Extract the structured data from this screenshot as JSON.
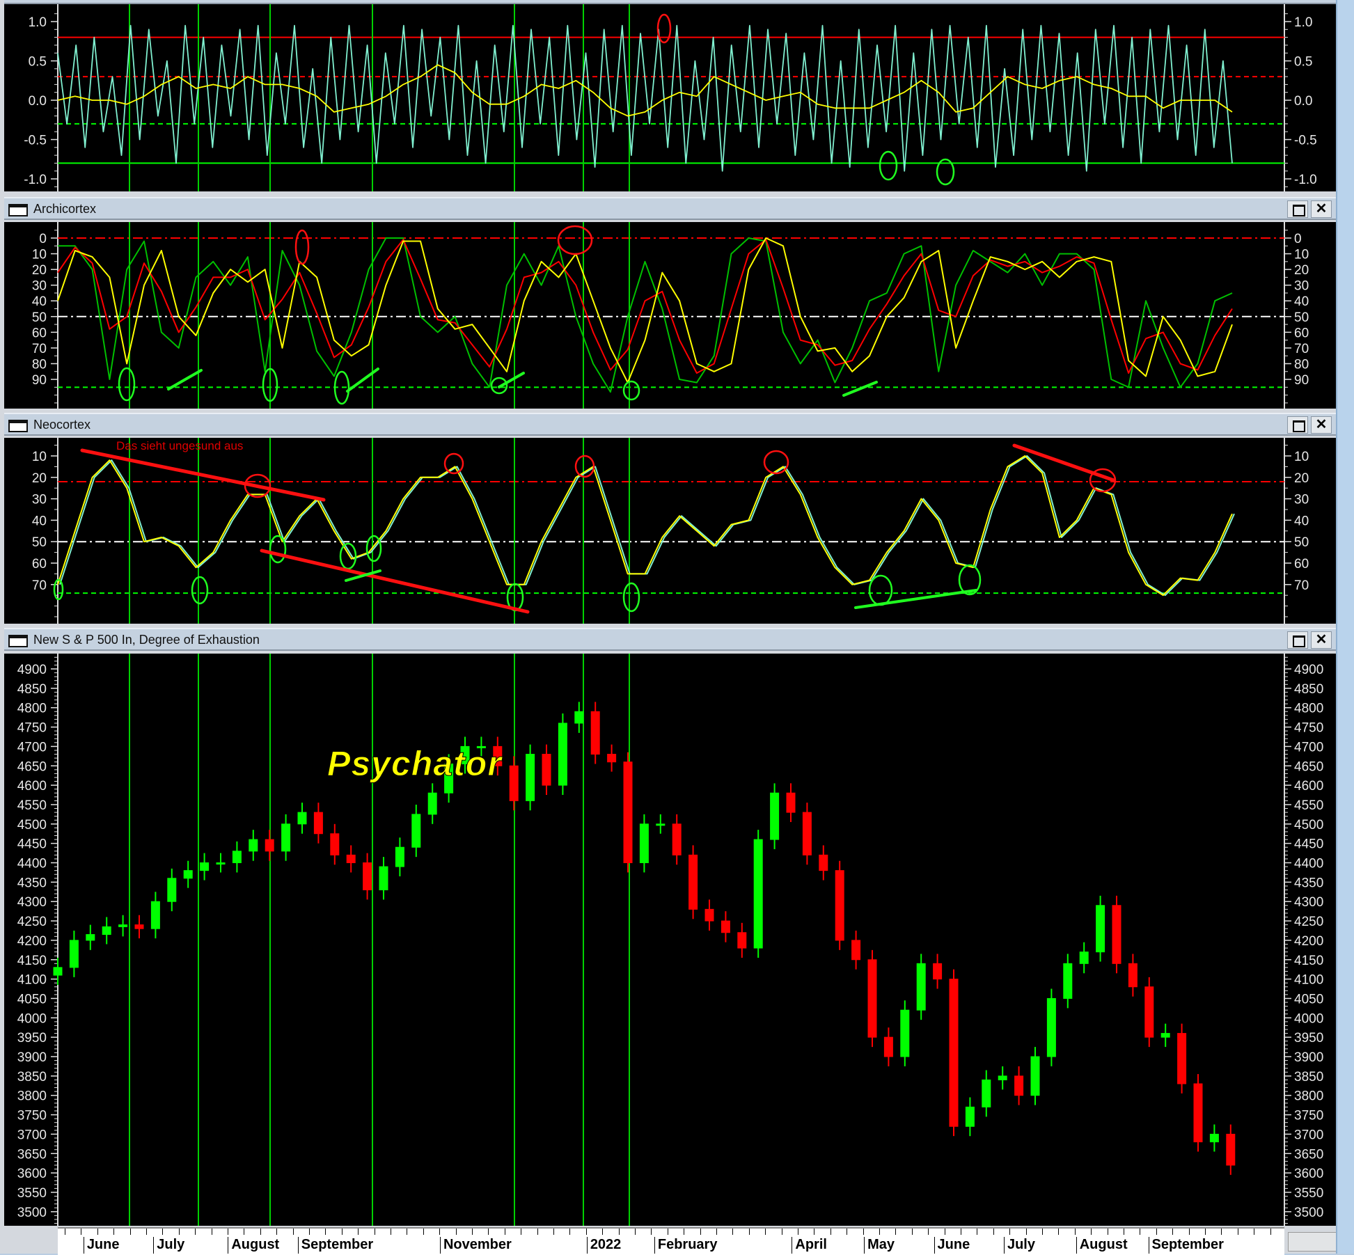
{
  "panes": [
    {
      "title": "",
      "ticks": [
        "1.0",
        "0.5",
        "0.0",
        "-0.5",
        "-1.0"
      ],
      "tick_values": [
        1.0,
        0.5,
        0.0,
        -0.5,
        -1.0
      ],
      "levels": [
        {
          "value": 0.8,
          "color": "#ff0000",
          "style": "solid"
        },
        {
          "value": 0.3,
          "color": "#ff0000",
          "style": "dashed"
        },
        {
          "value": -0.3,
          "color": "#00ff00",
          "style": "dashed"
        },
        {
          "value": -0.8,
          "color": "#00ff00",
          "style": "solid"
        }
      ]
    },
    {
      "title": "Archicortex",
      "ticks": [
        "0",
        "10",
        "20",
        "30",
        "40",
        "50",
        "60",
        "70",
        "80",
        "90"
      ],
      "tick_values": [
        0,
        10,
        20,
        30,
        40,
        50,
        60,
        70,
        80,
        90
      ],
      "levels": [
        {
          "value": 0,
          "color": "#ff0000",
          "style": "dashdot"
        },
        {
          "value": 50,
          "color": "#ffffff",
          "style": "dashdot"
        },
        {
          "value": 95,
          "color": "#00ff00",
          "style": "dashed"
        }
      ]
    },
    {
      "title": "Neocortex",
      "ticks": [
        "10",
        "20",
        "30",
        "40",
        "50",
        "60",
        "70"
      ],
      "tick_values": [
        10,
        20,
        30,
        40,
        50,
        60,
        70
      ],
      "levels": [
        {
          "value": 22,
          "color": "#ff0000",
          "style": "dashdot"
        },
        {
          "value": 50,
          "color": "#ffffff",
          "style": "dashdot"
        },
        {
          "value": 74,
          "color": "#00ff00",
          "style": "dashed"
        }
      ],
      "annotation": "Das sieht ungesund aus"
    },
    {
      "title": "New S & P 500 In, Degree of Exhaustion",
      "ticks": [
        "4900",
        "4850",
        "4800",
        "4750",
        "4700",
        "4650",
        "4600",
        "4550",
        "4500",
        "4450",
        "4400",
        "4350",
        "4300",
        "4250",
        "4200",
        "4150",
        "4100",
        "4050",
        "4000",
        "3950",
        "3900",
        "3850",
        "3800",
        "3750",
        "3700",
        "3650",
        "3600",
        "3550",
        "3500"
      ],
      "tick_values": [
        4900,
        4850,
        4800,
        4750,
        4700,
        4650,
        4600,
        4550,
        4500,
        4450,
        4400,
        4350,
        4300,
        4250,
        4200,
        4150,
        4100,
        4050,
        4000,
        3950,
        3900,
        3850,
        3800,
        3750,
        3700,
        3650,
        3600,
        3550,
        3500
      ],
      "watermark": "Psychator"
    }
  ],
  "x_axis": {
    "labels": [
      {
        "text": "June",
        "date": "2021-06-01"
      },
      {
        "text": "July",
        "date": "2021-07-01"
      },
      {
        "text": "August",
        "date": "2021-08-02"
      },
      {
        "text": "September",
        "date": "2021-09-01"
      },
      {
        "text": "November",
        "date": "2021-11-01"
      },
      {
        "text": "2022",
        "date": "2022-01-03"
      },
      {
        "text": "February",
        "date": "2022-02-01"
      },
      {
        "text": "April",
        "date": "2022-04-01"
      },
      {
        "text": "May",
        "date": "2022-05-02"
      },
      {
        "text": "June",
        "date": "2022-06-01"
      },
      {
        "text": "July",
        "date": "2022-07-01"
      },
      {
        "text": "August",
        "date": "2022-08-01"
      },
      {
        "text": "September",
        "date": "2022-09-01"
      }
    ]
  },
  "colors": {
    "up": "#00ff00",
    "down": "#ff0000",
    "cyan": "#80f0d0",
    "yellow": "#ffff00",
    "marker": "#00d000",
    "background": "#000000"
  },
  "chart_data": [
    {
      "type": "line",
      "pane": "top",
      "x_range": [
        "2021-05-21",
        "2022-10-07"
      ],
      "ylim": [
        -1.1,
        1.1
      ],
      "series": [
        {
          "color": "#80f0d0",
          "values": [
            0.6,
            -0.3,
            0.7,
            -0.6,
            0.8,
            -0.4,
            0.3,
            -0.7,
            0.95,
            -0.5,
            0.9,
            -0.2,
            0.5,
            -0.8,
            0.95,
            -0.3,
            0.8,
            -0.6,
            0.7,
            -0.2,
            0.9,
            -0.5,
            0.95,
            -0.7,
            0.6,
            -0.3,
            0.95,
            -0.6,
            0.4,
            -0.8,
            0.8,
            -0.5,
            0.95,
            -0.4,
            0.7,
            -0.8,
            0.6,
            -0.3,
            0.95,
            -0.6,
            0.9,
            -0.2,
            0.8,
            -0.5,
            0.95,
            -0.7,
            0.5,
            -0.8,
            0.7,
            -0.4,
            0.95,
            -0.6,
            0.9,
            -0.3,
            0.8,
            -0.7,
            0.95,
            -0.5,
            0.6,
            -0.85,
            0.9,
            -0.4,
            0.95,
            -0.7,
            0.85,
            -0.3,
            0.9,
            -0.6,
            0.95,
            -0.8,
            0.5,
            -0.5,
            0.8,
            -0.9,
            0.7,
            -0.4,
            0.95,
            -0.6,
            0.9,
            -0.3,
            0.85,
            -0.7,
            0.6,
            -0.5,
            0.95,
            -0.8,
            0.5,
            -0.85,
            0.9,
            -0.6,
            0.7,
            -0.4,
            0.95,
            -0.9,
            0.6,
            -0.7,
            0.9,
            -0.5,
            0.95,
            -0.3,
            0.8,
            -0.6,
            0.95,
            -0.85,
            0.4,
            -0.7,
            0.9,
            -0.5,
            0.95,
            -0.4,
            0.85,
            -0.7,
            0.6,
            -0.9,
            0.9,
            -0.3,
            0.95,
            -0.6,
            0.8,
            -0.8,
            0.9,
            -0.4,
            0.95,
            -0.5,
            0.7,
            -0.7,
            0.9,
            -0.6,
            0.5,
            -0.8
          ]
        },
        {
          "color": "#ffff00",
          "values": [
            0,
            0.05,
            0,
            0,
            -0.05,
            0.05,
            0.2,
            0.3,
            0.15,
            0.2,
            0.15,
            0.3,
            0.2,
            0.2,
            0.15,
            0.05,
            -0.15,
            -0.1,
            -0.05,
            0.05,
            0.2,
            0.3,
            0.45,
            0.35,
            0.1,
            -0.05,
            -0.05,
            0.05,
            0.2,
            0.15,
            0.25,
            0.1,
            -0.1,
            -0.2,
            -0.15,
            0,
            0.1,
            0.05,
            0.3,
            0.2,
            0.1,
            0,
            0.05,
            0.1,
            -0.05,
            -0.1,
            -0.1,
            -0.1,
            0,
            0.1,
            0.25,
            0.1,
            -0.15,
            -0.1,
            0.1,
            0.3,
            0.2,
            0.15,
            0.25,
            0.3,
            0.2,
            0.15,
            0.05,
            0.05,
            -0.1,
            0,
            0,
            0,
            -0.15
          ]
        }
      ]
    },
    {
      "type": "line",
      "pane": "Archicortex",
      "x_range": [
        "2021-05-21",
        "2022-10-07"
      ],
      "ylim": [
        0,
        100
      ],
      "inverted": true,
      "series": [
        {
          "color": "#00c000",
          "values": [
            5,
            5,
            20,
            90,
            20,
            2,
            60,
            70,
            25,
            15,
            30,
            12,
            85,
            8,
            30,
            72,
            88,
            60,
            20,
            0,
            0,
            50,
            60,
            50,
            80,
            95,
            30,
            10,
            30,
            5,
            50,
            80,
            98,
            50,
            15,
            45,
            90,
            92,
            75,
            10,
            0,
            2,
            60,
            80,
            65,
            92,
            70,
            40,
            35,
            10,
            5,
            85,
            30,
            8,
            15,
            22,
            10,
            30,
            10,
            10,
            20,
            90,
            95,
            40,
            70,
            95,
            80,
            40,
            35
          ]
        },
        {
          "color": "#ff0000",
          "values": [
            22,
            6,
            16,
            58,
            50,
            16,
            34,
            60,
            44,
            25,
            25,
            20,
            52,
            39,
            22,
            48,
            76,
            68,
            44,
            15,
            1,
            26,
            52,
            54,
            68,
            82,
            58,
            25,
            22,
            15,
            30,
            60,
            84,
            71,
            40,
            34,
            65,
            86,
            80,
            45,
            10,
            1,
            32,
            65,
            68,
            81,
            78,
            58,
            42,
            24,
            10,
            46,
            50,
            24,
            14,
            18,
            15,
            22,
            18,
            12,
            16,
            52,
            86,
            64,
            60,
            80,
            84,
            62,
            45
          ]
        },
        {
          "color": "#ffff00",
          "values": [
            40,
            8,
            12,
            25,
            80,
            30,
            8,
            50,
            62,
            35,
            20,
            28,
            20,
            70,
            15,
            25,
            65,
            75,
            68,
            30,
            2,
            2,
            45,
            58,
            55,
            70,
            85,
            40,
            15,
            25,
            10,
            40,
            70,
            92,
            65,
            22,
            40,
            80,
            85,
            80,
            20,
            0,
            5,
            50,
            72,
            70,
            85,
            75,
            50,
            38,
            15,
            8,
            70,
            40,
            12,
            15,
            20,
            15,
            25,
            15,
            12,
            15,
            78,
            88,
            50,
            65,
            88,
            85,
            55
          ]
        }
      ]
    },
    {
      "type": "line",
      "pane": "Neocortex",
      "x_range": [
        "2021-05-21",
        "2022-10-07"
      ],
      "ylim": [
        5,
        80
      ],
      "inverted": true,
      "series": [
        {
          "color": "#ffff00",
          "values": [
            70,
            45,
            20,
            12,
            25,
            50,
            48,
            52,
            62,
            55,
            40,
            28,
            28,
            50,
            38,
            30,
            45,
            58,
            55,
            45,
            30,
            20,
            20,
            15,
            30,
            50,
            70,
            70,
            50,
            35,
            20,
            15,
            40,
            65,
            65,
            48,
            38,
            45,
            52,
            42,
            40,
            20,
            15,
            28,
            48,
            62,
            70,
            68,
            55,
            45,
            30,
            40,
            60,
            62,
            35,
            15,
            10,
            18,
            48,
            40,
            25,
            28,
            55,
            70,
            75,
            67,
            68,
            55,
            37
          ]
        }
      ]
    },
    {
      "type": "candlestick",
      "pane": "New S & P 500 In, Degree of Exhaustion",
      "ylim": [
        3480,
        4930
      ],
      "interval": "weekly",
      "start": "2021-05-21",
      "closes": [
        4130,
        4200,
        4215,
        4235,
        4240,
        4230,
        4300,
        4360,
        4380,
        4400,
        4400,
        4430,
        4460,
        4430,
        4500,
        4530,
        4475,
        4420,
        4400,
        4330,
        4390,
        4440,
        4525,
        4580,
        4655,
        4700,
        4700,
        4650,
        4560,
        4680,
        4600,
        4760,
        4790,
        4680,
        4660,
        4400,
        4500,
        4500,
        4420,
        4280,
        4250,
        4220,
        4180,
        4460,
        4580,
        4530,
        4420,
        4380,
        4200,
        4150,
        3950,
        3900,
        4020,
        4140,
        4100,
        3720,
        3770,
        3840,
        3850,
        3800,
        3900,
        4050,
        4140,
        4170,
        4290,
        4140,
        4080,
        3950,
        3960,
        3830,
        3680,
        3700,
        3620
      ]
    }
  ]
}
